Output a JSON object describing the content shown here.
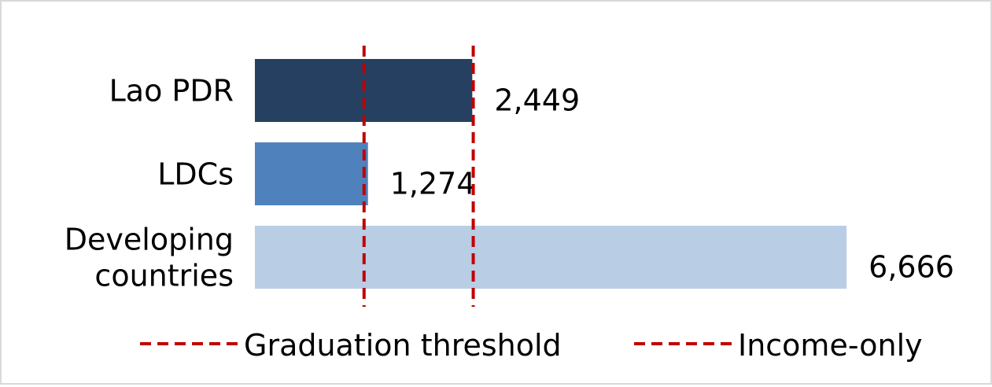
{
  "chart_data": {
    "type": "bar",
    "orientation": "horizontal",
    "categories": [
      "Lao PDR",
      "LDCs",
      "Developing countries"
    ],
    "values": [
      2449,
      1274,
      6666
    ],
    "value_labels": [
      "2,449",
      "1,274",
      "6,666"
    ],
    "bar_colors": [
      "#264061",
      "#4f81bd",
      "#b9cde5"
    ],
    "reference_lines": [
      {
        "name": "Graduation threshold",
        "value": 1230,
        "color": "#c00000",
        "style": "dashed"
      },
      {
        "name": "Income-only",
        "value": 2460,
        "color": "#c00000",
        "style": "dashed"
      }
    ],
    "xlim": [
      0,
      6700
    ],
    "grid": false,
    "legend_position": "bottom",
    "title": "",
    "xlabel": "",
    "ylabel": ""
  }
}
